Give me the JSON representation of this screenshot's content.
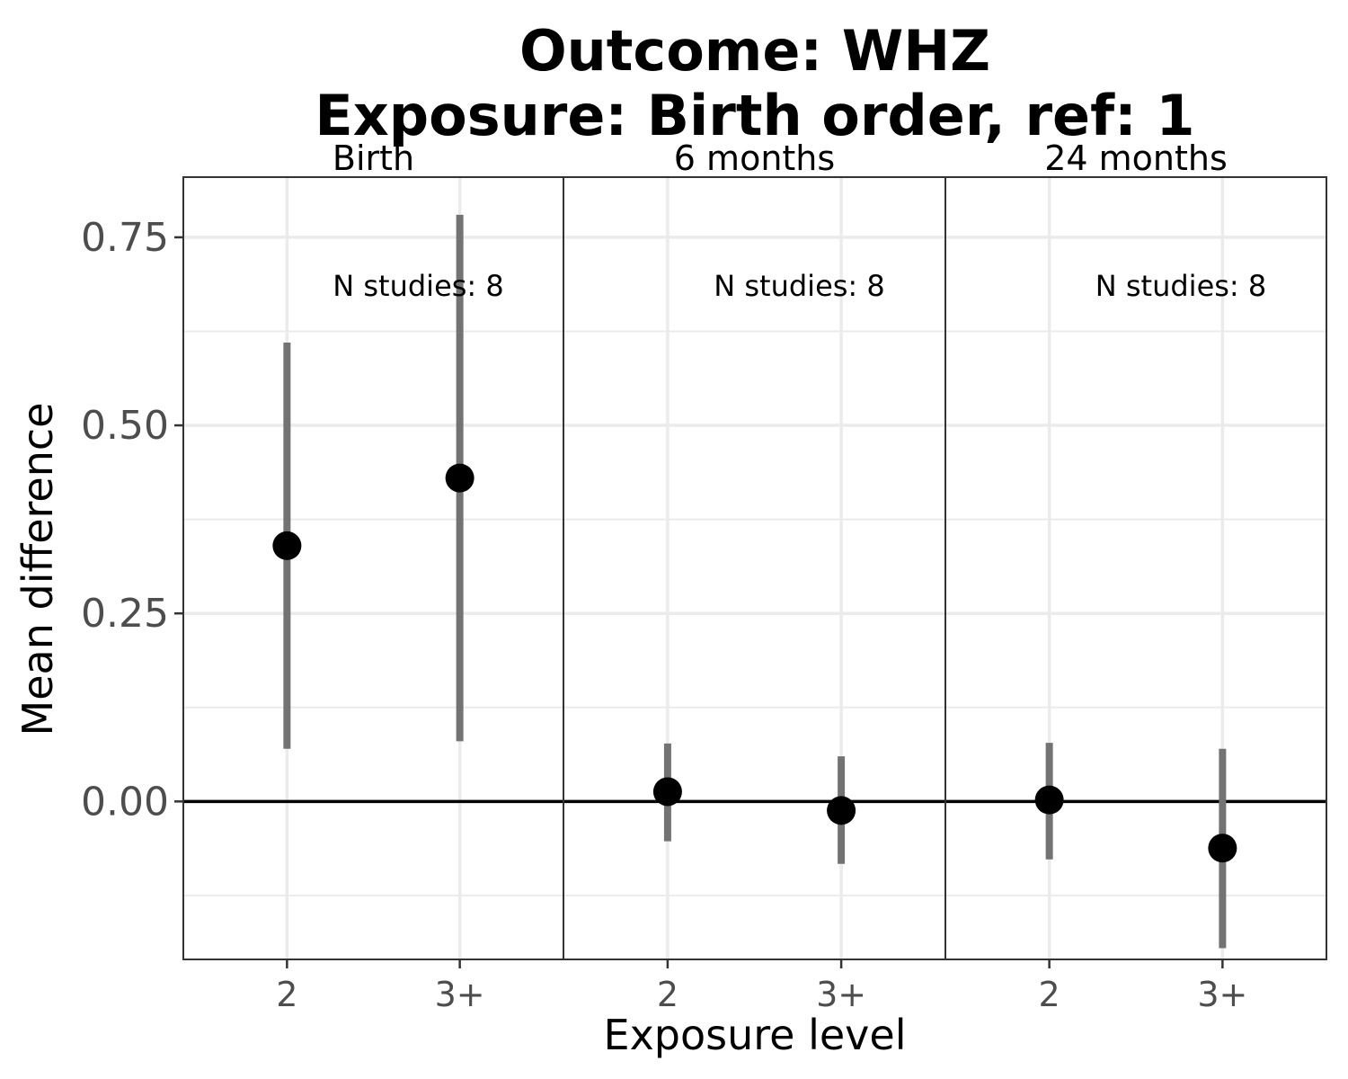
{
  "chart_data": {
    "type": "scatter",
    "title": [
      "Outcome: WHZ",
      "Exposure: Birth order, ref: 1"
    ],
    "xlabel": "Exposure level",
    "ylabel": "Mean difference",
    "categories": [
      "2",
      "3+"
    ],
    "ylim": [
      -0.21,
      0.83
    ],
    "yticks": [
      "0.00",
      "0.25",
      "0.50",
      "0.75"
    ],
    "ytick_values": [
      0,
      0.25,
      0.5,
      0.75
    ],
    "reference_line": 0,
    "grid": true,
    "colors": {
      "point": "#000000",
      "interval": "#737373",
      "grid": "#ebebeb",
      "panel_border": "#333333"
    },
    "panels": [
      {
        "label": "Birth",
        "annotation": "N studies: 8",
        "points": [
          {
            "x": "2",
            "y": 0.34,
            "lower": 0.07,
            "upper": 0.61
          },
          {
            "x": "3+",
            "y": 0.43,
            "lower": 0.08,
            "upper": 0.78
          }
        ]
      },
      {
        "label": "6 months",
        "annotation": "N studies: 8",
        "points": [
          {
            "x": "2",
            "y": 0.013,
            "lower": -0.053,
            "upper": 0.077
          },
          {
            "x": "3+",
            "y": -0.012,
            "lower": -0.083,
            "upper": 0.06
          }
        ]
      },
      {
        "label": "24 months",
        "annotation": "N studies: 8",
        "points": [
          {
            "x": "2",
            "y": 0.002,
            "lower": -0.077,
            "upper": 0.078
          },
          {
            "x": "3+",
            "y": -0.062,
            "lower": -0.195,
            "upper": 0.07
          }
        ]
      }
    ]
  }
}
